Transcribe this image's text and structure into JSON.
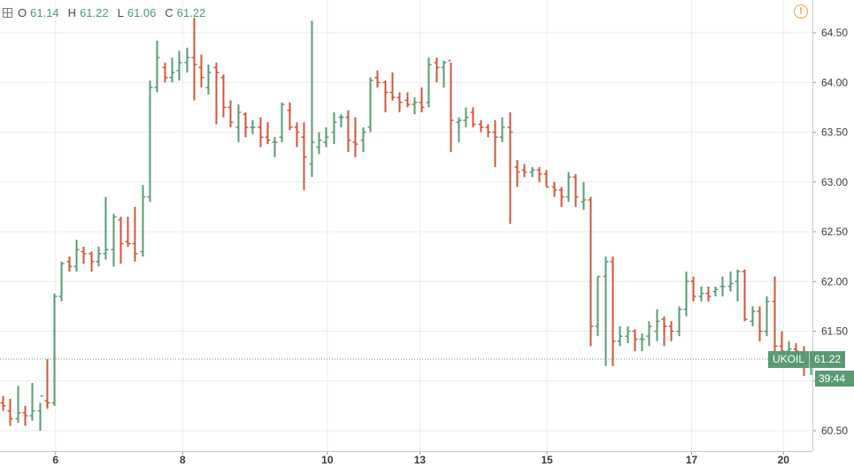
{
  "legend": {
    "open_label": "O",
    "open": "61.14",
    "high_label": "H",
    "high": "61.22",
    "low_label": "L",
    "low": "61.06",
    "close_label": "C",
    "close": "61.22"
  },
  "warning_icon": "!",
  "price_badge": {
    "symbol": "UKOIL",
    "price": "61.22",
    "countdown": "39:44"
  },
  "colors": {
    "up": "#5a9a72",
    "down": "#d0543a",
    "grid": "#ececec",
    "price_line": "#5a9a72"
  },
  "chart_data": {
    "type": "ohlc",
    "ylim": [
      60.35,
      64.65
    ],
    "y_ticks": [
      "60.50",
      "61.00",
      "61.50",
      "62.00",
      "62.50",
      "63.00",
      "63.50",
      "64.00",
      "64.50"
    ],
    "y_tick_values": [
      60.5,
      61.0,
      61.5,
      62.0,
      62.5,
      63.0,
      63.5,
      64.0,
      64.5
    ],
    "x_ticks": [
      {
        "label": "6",
        "bar": 7.2
      },
      {
        "label": "8",
        "bar": 24.5
      },
      {
        "label": "10",
        "bar": 44.2
      },
      {
        "label": "13",
        "bar": 56.8
      },
      {
        "label": "15",
        "bar": 74.1
      },
      {
        "label": "17",
        "bar": 93.8
      },
      {
        "label": "20",
        "bar": 106.3
      }
    ],
    "last_price": 61.22,
    "bars": [
      [
        60.78,
        60.85,
        60.7,
        60.75
      ],
      [
        60.7,
        60.82,
        60.55,
        60.62
      ],
      [
        60.62,
        60.95,
        60.58,
        60.68
      ],
      [
        60.68,
        60.75,
        60.55,
        60.65
      ],
      [
        60.65,
        60.98,
        60.6,
        60.7
      ],
      [
        60.7,
        60.78,
        60.5,
        60.85
      ],
      [
        60.8,
        61.22,
        60.72,
        60.78
      ],
      [
        60.78,
        61.88,
        60.75,
        61.85
      ],
      [
        61.85,
        62.2,
        61.8,
        62.18
      ],
      [
        62.2,
        62.25,
        62.1,
        62.15
      ],
      [
        62.15,
        62.42,
        62.1,
        62.32
      ],
      [
        62.3,
        62.35,
        62.18,
        62.28
      ],
      [
        62.28,
        62.3,
        62.1,
        62.2
      ],
      [
        62.2,
        62.35,
        62.15,
        62.28
      ],
      [
        62.28,
        62.85,
        62.22,
        62.32
      ],
      [
        62.32,
        62.68,
        62.15,
        62.65
      ],
      [
        62.62,
        62.65,
        62.18,
        62.38
      ],
      [
        62.4,
        62.65,
        62.35,
        62.38
      ],
      [
        62.38,
        62.75,
        62.2,
        62.28
      ],
      [
        62.3,
        62.97,
        62.25,
        62.85
      ],
      [
        62.85,
        64.02,
        62.8,
        63.95
      ],
      [
        63.95,
        64.42,
        63.9,
        64.25
      ],
      [
        64.15,
        64.2,
        64.0,
        64.05
      ],
      [
        64.05,
        64.25,
        64.0,
        64.1
      ],
      [
        64.12,
        64.32,
        64.02,
        64.2
      ],
      [
        64.2,
        64.35,
        64.1,
        64.25
      ],
      [
        64.25,
        64.65,
        63.82,
        64.18
      ],
      [
        64.15,
        64.28,
        63.95,
        64.05
      ],
      [
        63.95,
        64.18,
        63.88,
        64.1
      ],
      [
        64.15,
        64.2,
        63.58,
        64.1
      ],
      [
        64.05,
        64.08,
        63.65,
        63.75
      ],
      [
        63.75,
        63.82,
        63.55,
        63.6
      ],
      [
        63.55,
        63.78,
        63.4,
        63.7
      ],
      [
        63.68,
        63.7,
        63.45,
        63.55
      ],
      [
        63.55,
        63.62,
        63.48,
        63.55
      ],
      [
        63.55,
        63.65,
        63.35,
        63.45
      ],
      [
        63.45,
        63.6,
        63.38,
        63.42
      ],
      [
        63.4,
        63.45,
        63.25,
        63.4
      ],
      [
        63.45,
        63.8,
        63.4,
        63.78
      ],
      [
        63.72,
        63.8,
        63.52,
        63.55
      ],
      [
        63.55,
        63.6,
        63.35,
        63.5
      ],
      [
        63.45,
        63.6,
        62.92,
        63.25
      ],
      [
        63.18,
        64.62,
        63.05,
        63.4
      ],
      [
        63.35,
        63.5,
        63.28,
        63.42
      ],
      [
        63.4,
        63.55,
        63.35,
        63.45
      ],
      [
        63.5,
        63.7,
        63.38,
        63.6
      ],
      [
        63.65,
        63.68,
        63.55,
        63.65
      ],
      [
        63.65,
        63.72,
        63.3,
        63.42
      ],
      [
        63.4,
        63.65,
        63.25,
        63.38
      ],
      [
        63.42,
        63.55,
        63.3,
        63.5
      ],
      [
        63.55,
        64.05,
        63.5,
        64.02
      ],
      [
        64.05,
        64.12,
        63.95,
        64.0
      ],
      [
        64.0,
        64.02,
        63.7,
        63.9
      ],
      [
        63.9,
        64.1,
        63.82,
        63.85
      ],
      [
        63.85,
        63.9,
        63.7,
        63.8
      ],
      [
        63.82,
        63.9,
        63.75,
        63.78
      ],
      [
        63.78,
        63.85,
        63.68,
        63.8
      ],
      [
        63.8,
        63.95,
        63.7,
        63.75
      ],
      [
        63.8,
        64.25,
        63.75,
        64.18
      ],
      [
        64.2,
        64.25,
        64.0,
        64.15
      ],
      [
        64.15,
        64.22,
        63.95,
        64.2
      ],
      [
        64.22,
        64.2,
        63.3,
        63.62
      ],
      [
        63.6,
        63.65,
        63.4,
        63.62
      ],
      [
        63.62,
        63.75,
        63.55,
        63.65
      ],
      [
        63.7,
        63.75,
        63.55,
        63.58
      ],
      [
        63.58,
        63.62,
        63.5,
        63.55
      ],
      [
        63.55,
        63.58,
        63.45,
        63.5
      ],
      [
        63.5,
        63.62,
        63.15,
        63.45
      ],
      [
        63.45,
        63.65,
        63.4,
        63.55
      ],
      [
        63.55,
        63.7,
        62.58,
        63.5
      ],
      [
        63.15,
        63.22,
        62.95,
        63.1
      ],
      [
        63.12,
        63.18,
        63.05,
        63.1
      ],
      [
        63.1,
        63.15,
        63.05,
        63.12
      ],
      [
        63.12,
        63.15,
        63.0,
        63.08
      ],
      [
        63.08,
        63.12,
        62.95,
        62.95
      ],
      [
        62.95,
        63.0,
        62.85,
        62.92
      ],
      [
        62.92,
        62.95,
        62.75,
        62.85
      ],
      [
        62.85,
        63.1,
        62.8,
        63.05
      ],
      [
        63.05,
        63.08,
        62.75,
        62.85
      ],
      [
        62.8,
        63.0,
        62.72,
        62.82
      ],
      [
        62.82,
        62.85,
        61.35,
        61.55
      ],
      [
        61.55,
        62.05,
        61.45,
        62.05
      ],
      [
        62.05,
        62.25,
        61.15,
        62.2
      ],
      [
        62.2,
        62.25,
        61.15,
        61.4
      ],
      [
        61.4,
        61.55,
        61.35,
        61.45
      ],
      [
        61.45,
        61.55,
        61.38,
        61.5
      ],
      [
        61.5,
        61.52,
        61.3,
        61.42
      ],
      [
        61.42,
        61.48,
        61.3,
        61.42
      ],
      [
        61.45,
        61.6,
        61.35,
        61.55
      ],
      [
        61.5,
        61.72,
        61.4,
        61.6
      ],
      [
        61.62,
        61.65,
        61.35,
        61.55
      ],
      [
        61.55,
        61.6,
        61.4,
        61.5
      ],
      [
        61.5,
        61.75,
        61.45,
        61.72
      ],
      [
        61.72,
        62.1,
        61.65,
        62.0
      ],
      [
        62.0,
        62.05,
        61.8,
        61.85
      ],
      [
        61.85,
        61.95,
        61.8,
        61.88
      ],
      [
        61.88,
        61.95,
        61.8,
        61.85
      ],
      [
        61.9,
        61.95,
        61.85,
        61.92
      ],
      [
        61.95,
        62.05,
        61.85,
        61.95
      ],
      [
        61.95,
        62.1,
        61.9,
        61.98
      ],
      [
        62.0,
        62.12,
        61.8,
        62.1
      ],
      [
        62.1,
        62.12,
        61.6,
        61.62
      ],
      [
        61.6,
        61.75,
        61.55,
        61.7
      ],
      [
        61.7,
        61.75,
        61.4,
        61.5
      ],
      [
        61.5,
        61.85,
        61.45,
        61.8
      ],
      [
        61.8,
        62.05,
        61.3,
        61.35
      ],
      [
        61.35,
        61.5,
        61.2,
        61.3
      ],
      [
        61.3,
        61.4,
        61.2,
        61.32
      ],
      [
        61.32,
        61.38,
        61.22,
        61.3
      ],
      [
        61.28,
        61.35,
        61.05,
        61.15
      ],
      [
        61.14,
        61.22,
        61.06,
        61.22
      ]
    ]
  }
}
